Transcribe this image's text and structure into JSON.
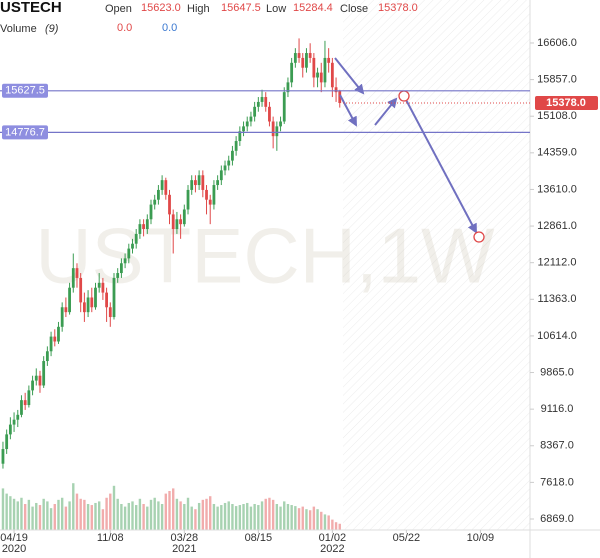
{
  "chart_data": {
    "type": "candlestick",
    "header": {
      "symbol": "USTECH",
      "open_label": "Open",
      "open": "15623.0",
      "high_label": "High",
      "high": "15647.5",
      "low_label": "Low",
      "low": "15284.4",
      "close_label": "Close",
      "close": "15378.0",
      "volume_label": "Volume",
      "volume_period": "(9)",
      "volume_a": "0.0",
      "volume_b": "0.0"
    },
    "watermark": "USTECH,1W",
    "up_color": "#3b9c52",
    "down_color": "#e04848",
    "line_color": "#7474c8",
    "ylim": [
      6644,
      17485
    ],
    "xlim": [
      -0.8,
      142.4
    ],
    "yticks": [
      {
        "value": 16606,
        "label": "16606.0"
      },
      {
        "value": 15857,
        "label": "15857.0"
      },
      {
        "value": 15108,
        "label": "15108.0"
      },
      {
        "value": 14359,
        "label": "14359.0"
      },
      {
        "value": 13610,
        "label": "13610.0"
      },
      {
        "value": 12861,
        "label": "12861.0"
      },
      {
        "value": 12112,
        "label": "12112.0"
      },
      {
        "value": 11363,
        "label": "11363.0"
      },
      {
        "value": 10614,
        "label": "10614.0"
      },
      {
        "value": 9865,
        "label": "9865.0"
      },
      {
        "value": 9116,
        "label": "9116.0"
      },
      {
        "value": 8367,
        "label": "8367.0"
      },
      {
        "value": 7618,
        "label": "7618.0"
      },
      {
        "value": 6869,
        "label": "6869.0"
      }
    ],
    "xticks": [
      {
        "value": 3,
        "label": "04/19"
      },
      {
        "value": 29,
        "label": "11/08"
      },
      {
        "value": 49,
        "label": "03/28"
      },
      {
        "value": 69,
        "label": "08/15"
      },
      {
        "value": 89,
        "label": "01/02"
      },
      {
        "value": 109,
        "label": "05/22"
      },
      {
        "value": 129,
        "label": "10/09"
      }
    ],
    "years": [
      {
        "value": 3,
        "label": "2020"
      },
      {
        "value": 49,
        "label": "2021"
      },
      {
        "value": 89,
        "label": "2022"
      }
    ],
    "hlines": [
      {
        "value": 15627.5,
        "label": "15627.5"
      },
      {
        "value": 14776.7,
        "label": "14776.7"
      }
    ],
    "last_price": {
      "value": 15378,
      "label": "15378.0"
    },
    "candles": [
      [
        8000,
        8450,
        7900,
        8300
      ],
      [
        8300,
        8700,
        8200,
        8600
      ],
      [
        8600,
        8950,
        8500,
        8800
      ],
      [
        8800,
        9050,
        8650,
        8900
      ],
      [
        8900,
        9100,
        8750,
        9000
      ],
      [
        9000,
        9400,
        8950,
        9300
      ],
      [
        9300,
        9450,
        9100,
        9200
      ],
      [
        9200,
        9600,
        9150,
        9500
      ],
      [
        9500,
        9800,
        9400,
        9700
      ],
      [
        9700,
        9950,
        9600,
        9800
      ],
      [
        9800,
        9900,
        9450,
        9600
      ],
      [
        9600,
        10200,
        9550,
        10100
      ],
      [
        10100,
        10400,
        10000,
        10300
      ],
      [
        10300,
        10700,
        10200,
        10600
      ],
      [
        10600,
        10750,
        10400,
        10500
      ],
      [
        10500,
        10900,
        10450,
        10800
      ],
      [
        10800,
        11300,
        10700,
        11200
      ],
      [
        11200,
        11400,
        11000,
        11100
      ],
      [
        11100,
        11700,
        11050,
        11600
      ],
      [
        11600,
        12300,
        11500,
        12000
      ],
      [
        12000,
        12100,
        11600,
        11800
      ],
      [
        11800,
        11900,
        11100,
        11300
      ],
      [
        11300,
        11500,
        10900,
        11100
      ],
      [
        11100,
        11550,
        11000,
        11400
      ],
      [
        11400,
        11600,
        11100,
        11200
      ],
      [
        11200,
        11700,
        11150,
        11600
      ],
      [
        11600,
        11900,
        11500,
        11700
      ],
      [
        11700,
        11800,
        11350,
        11500
      ],
      [
        11500,
        11600,
        10900,
        11200
      ],
      [
        11200,
        11300,
        10800,
        11000
      ],
      [
        11000,
        11900,
        10950,
        11800
      ],
      [
        11800,
        12000,
        11700,
        11900
      ],
      [
        11900,
        12200,
        11800,
        12100
      ],
      [
        12100,
        12300,
        12000,
        12200
      ],
      [
        12200,
        12500,
        12100,
        12400
      ],
      [
        12400,
        12600,
        12300,
        12500
      ],
      [
        12500,
        12800,
        12400,
        12700
      ],
      [
        12700,
        13000,
        12600,
        12900
      ],
      [
        12900,
        13000,
        12650,
        12800
      ],
      [
        12800,
        13100,
        12700,
        13000
      ],
      [
        13000,
        13400,
        12900,
        13300
      ],
      [
        13300,
        13500,
        13200,
        13400
      ],
      [
        13400,
        13700,
        13300,
        13600
      ],
      [
        13600,
        13900,
        13500,
        13800
      ],
      [
        13800,
        13850,
        13400,
        13500
      ],
      [
        13500,
        13600,
        12900,
        13100
      ],
      [
        13100,
        13200,
        12300,
        12800
      ],
      [
        12800,
        13150,
        12700,
        13000
      ],
      [
        13000,
        13100,
        12600,
        12900
      ],
      [
        12900,
        13300,
        12850,
        13200
      ],
      [
        13200,
        13700,
        13100,
        13600
      ],
      [
        13600,
        13900,
        13500,
        13800
      ],
      [
        13800,
        13900,
        13550,
        13700
      ],
      [
        13700,
        14000,
        13600,
        13900
      ],
      [
        13900,
        14000,
        13450,
        13600
      ],
      [
        13600,
        13700,
        13100,
        13400
      ],
      [
        13400,
        13500,
        12900,
        13300
      ],
      [
        13300,
        13800,
        13200,
        13700
      ],
      [
        13700,
        13900,
        13600,
        13800
      ],
      [
        13800,
        14100,
        13700,
        14000
      ],
      [
        14000,
        14200,
        13900,
        14100
      ],
      [
        14100,
        14300,
        14000,
        14200
      ],
      [
        14200,
        14500,
        14100,
        14400
      ],
      [
        14400,
        14700,
        14300,
        14600
      ],
      [
        14600,
        14900,
        14500,
        14800
      ],
      [
        14800,
        15000,
        14700,
        14900
      ],
      [
        14900,
        15100,
        14800,
        15000
      ],
      [
        15000,
        15200,
        14900,
        15100
      ],
      [
        15100,
        15400,
        15000,
        15300
      ],
      [
        15300,
        15500,
        15200,
        15400
      ],
      [
        15400,
        15650,
        15300,
        15500
      ],
      [
        15500,
        15600,
        15200,
        15300
      ],
      [
        15300,
        15400,
        14900,
        15000
      ],
      [
        15000,
        15100,
        14450,
        14700
      ],
      [
        14700,
        15000,
        14400,
        14900
      ],
      [
        14900,
        15100,
        14800,
        15000
      ],
      [
        15000,
        15700,
        14950,
        15600
      ],
      [
        15600,
        15900,
        15500,
        15800
      ],
      [
        15800,
        16300,
        15700,
        16200
      ],
      [
        16200,
        16500,
        16100,
        16400
      ],
      [
        16400,
        16700,
        16200,
        16300
      ],
      [
        16300,
        16400,
        15900,
        16100
      ],
      [
        16100,
        16500,
        16000,
        16400
      ],
      [
        16400,
        16600,
        16200,
        16300
      ],
      [
        16300,
        16400,
        15700,
        15900
      ],
      [
        15900,
        16100,
        15700,
        16000
      ],
      [
        16000,
        16200,
        15600,
        15800
      ],
      [
        15800,
        16650,
        15700,
        16300
      ],
      [
        16300,
        16500,
        16000,
        16200
      ],
      [
        16200,
        16300,
        15500,
        15700
      ],
      [
        15700,
        15900,
        15400,
        15600
      ],
      [
        15623,
        15647.5,
        15284.4,
        15378
      ]
    ],
    "volume": [
      80,
      70,
      65,
      60,
      55,
      62,
      50,
      58,
      45,
      52,
      48,
      60,
      55,
      42,
      50,
      58,
      62,
      45,
      55,
      90,
      70,
      60,
      58,
      50,
      48,
      52,
      55,
      40,
      62,
      70,
      85,
      60,
      50,
      45,
      52,
      55,
      48,
      60,
      50,
      45,
      58,
      62,
      55,
      50,
      70,
      75,
      80,
      60,
      55,
      50,
      62,
      45,
      40,
      52,
      58,
      60,
      65,
      50,
      45,
      48,
      52,
      55,
      50,
      46,
      48,
      50,
      52,
      45,
      50,
      48,
      55,
      60,
      62,
      58,
      50,
      45,
      55,
      50,
      48,
      46,
      42,
      45,
      40,
      38,
      45,
      40,
      35,
      30,
      28,
      20,
      15,
      12
    ]
  }
}
